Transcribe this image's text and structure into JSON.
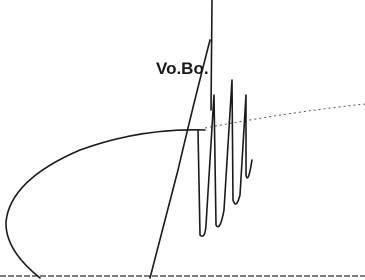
{
  "signature": {
    "label": "Vo.Bo."
  }
}
